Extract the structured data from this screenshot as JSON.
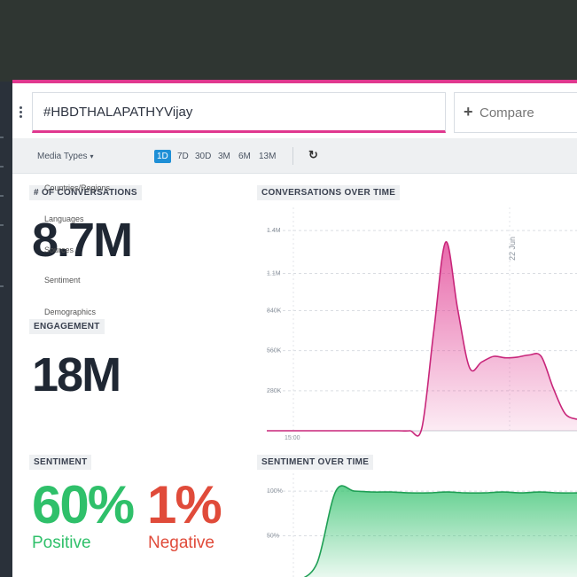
{
  "query": {
    "text": "#HBDTHALAPATHYVijay",
    "compare_label": "Compare"
  },
  "filters": {
    "media_types": "Media Types",
    "ranges": [
      "1D",
      "7D",
      "30D",
      "3M",
      "6M",
      "13M"
    ],
    "active_range": "1D"
  },
  "dropdown": {
    "items": [
      "Countries/Regions",
      "Languages",
      "Sources",
      "Sentiment",
      "Demographics"
    ]
  },
  "conversations": {
    "title": "# OF CONVERSATIONS",
    "value": "8.7M"
  },
  "engagement": {
    "title": "ENGAGEMENT",
    "value": "18M"
  },
  "sentiment": {
    "title": "SENTIMENT",
    "positive_value": "60%",
    "positive_label": "Positive",
    "negative_value": "1%",
    "negative_label": "Negative"
  },
  "colors": {
    "accent": "#e0388f",
    "positive": "#2fc06a",
    "negative": "#e04b3a",
    "active_range": "#1e8fd6"
  },
  "chart_data": [
    {
      "type": "area",
      "title": "CONVERSATIONS OVER TIME",
      "yticks": [
        "1.4M",
        "1.1M",
        "840K",
        "560K",
        "280K"
      ],
      "ytick_values": [
        1400000,
        1100000,
        840000,
        560000,
        280000
      ],
      "ylim": [
        0,
        1500000
      ],
      "xtick": "15:00",
      "annotation": "22 Jun",
      "x": [
        0,
        1,
        2,
        3,
        4,
        5,
        6,
        7,
        8,
        9,
        10,
        11,
        12,
        13,
        14,
        15,
        16,
        17,
        18,
        19,
        20,
        21,
        22,
        23,
        24,
        25,
        26
      ],
      "series": [
        {
          "color": "#e0388f",
          "values": [
            0,
            0,
            0,
            0,
            0,
            0,
            0,
            0,
            0,
            0,
            0,
            0,
            0,
            20000,
            700000,
            1320000,
            850000,
            440000,
            480000,
            520000,
            510000,
            515000,
            530000,
            520000,
            300000,
            120000,
            80000
          ]
        }
      ],
      "grid": true
    },
    {
      "type": "area",
      "title": "SENTIMENT OVER TIME",
      "yticks": [
        "100%",
        "50%"
      ],
      "ytick_values": [
        100,
        50
      ],
      "ylim": [
        0,
        110
      ],
      "x": [
        0,
        1,
        2,
        3,
        4,
        5,
        6,
        7,
        8,
        9,
        10,
        11,
        12,
        13,
        14,
        15
      ],
      "series": [
        {
          "color": "#2fc06a",
          "values": [
            0,
            20,
            100,
            100,
            99,
            99,
            98,
            98,
            99,
            98,
            98,
            99,
            98,
            99,
            98,
            98
          ]
        }
      ],
      "grid": true
    }
  ]
}
